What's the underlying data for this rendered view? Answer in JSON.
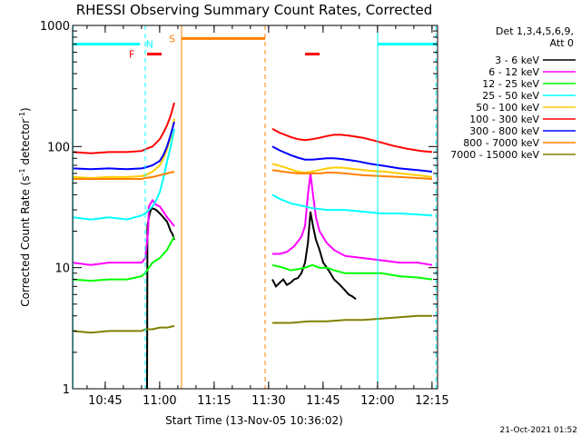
{
  "chart_data": {
    "type": "line",
    "title": "RHESSI Observing Summary Count Rates, Corrected",
    "xlabel": "Start Time (13-Nov-05 10:36:02)",
    "ylabel_main": "Corrected Count Rate (s",
    "ylabel_sup1": "-1",
    "ylabel_mid": " detector",
    "ylabel_sup2": "-1",
    "ylabel_end": ")",
    "x_unit": "minutes after 10:36:02",
    "xlim": [
      0,
      100.5
    ],
    "ylim": [
      1,
      1000
    ],
    "yscale": "log",
    "x_ticks": [
      {
        "v": 8.97,
        "label": "10:45"
      },
      {
        "v": 23.97,
        "label": "11:00"
      },
      {
        "v": 38.97,
        "label": "11:15"
      },
      {
        "v": 53.97,
        "label": "11:30"
      },
      {
        "v": 68.97,
        "label": "11:45"
      },
      {
        "v": 83.97,
        "label": "12:00"
      },
      {
        "v": 98.97,
        "label": "12:15"
      }
    ],
    "y_ticks": [
      {
        "v": 1,
        "label": "1"
      },
      {
        "v": 10,
        "label": "10"
      },
      {
        "v": 100,
        "label": "100"
      },
      {
        "v": 1000,
        "label": "1000"
      }
    ],
    "legend_header": [
      "Det 1,3,4,5,6,9,",
      "Att 0"
    ],
    "legend_position": "right",
    "series": [
      {
        "name": "3 - 6 keV",
        "color": "#000000",
        "points": [
          [
            20.5,
            1
          ],
          [
            20.6,
            22
          ],
          [
            21,
            26
          ],
          [
            21.5,
            30
          ],
          [
            22,
            31
          ],
          [
            23,
            30
          ],
          [
            24,
            28
          ],
          [
            25,
            26
          ],
          [
            26,
            24
          ],
          [
            26.5,
            22
          ],
          [
            27,
            20
          ],
          [
            27.5,
            19
          ],
          [
            28,
            17
          ],
          [
            55,
            8
          ],
          [
            56,
            7
          ],
          [
            57,
            7.5
          ],
          [
            58,
            8
          ],
          [
            59,
            7.2
          ],
          [
            60,
            7.5
          ],
          [
            61,
            8
          ],
          [
            62,
            8.2
          ],
          [
            63,
            9
          ],
          [
            64,
            11
          ],
          [
            64.8,
            16
          ],
          [
            65.5,
            29
          ],
          [
            66.2,
            22
          ],
          [
            67,
            17
          ],
          [
            68,
            14
          ],
          [
            69,
            11
          ],
          [
            70,
            10
          ],
          [
            71,
            9
          ],
          [
            72,
            8
          ],
          [
            73,
            7.5
          ],
          [
            74,
            7
          ],
          [
            75,
            6.5
          ],
          [
            76,
            6
          ],
          [
            77,
            5.8
          ],
          [
            78,
            5.5
          ]
        ]
      },
      {
        "name": "6 - 12 keV",
        "color": "#ff00ff",
        "points": [
          [
            0,
            11
          ],
          [
            5,
            10.5
          ],
          [
            10,
            11
          ],
          [
            15,
            11
          ],
          [
            19,
            11
          ],
          [
            20,
            12
          ],
          [
            20.8,
            20
          ],
          [
            21,
            32
          ],
          [
            22,
            36
          ],
          [
            23,
            33
          ],
          [
            24,
            32
          ],
          [
            25,
            29
          ],
          [
            26,
            26
          ],
          [
            27,
            24
          ],
          [
            28,
            22
          ],
          [
            55,
            13
          ],
          [
            57,
            13
          ],
          [
            59,
            13.5
          ],
          [
            61,
            15
          ],
          [
            63,
            18
          ],
          [
            64,
            22
          ],
          [
            64.8,
            40
          ],
          [
            65.5,
            60
          ],
          [
            66.2,
            40
          ],
          [
            67,
            26
          ],
          [
            68,
            20
          ],
          [
            70,
            16
          ],
          [
            72,
            14
          ],
          [
            75,
            12.5
          ],
          [
            80,
            12
          ],
          [
            85,
            11.5
          ],
          [
            90,
            11
          ],
          [
            95,
            11
          ],
          [
            99,
            10.5
          ]
        ]
      },
      {
        "name": "12 - 25 keV",
        "color": "#00ff00",
        "points": [
          [
            0,
            8
          ],
          [
            5,
            7.8
          ],
          [
            10,
            8
          ],
          [
            15,
            8
          ],
          [
            19,
            8.5
          ],
          [
            20,
            9
          ],
          [
            21,
            10
          ],
          [
            22,
            11
          ],
          [
            23,
            11.5
          ],
          [
            24,
            12
          ],
          [
            25,
            13
          ],
          [
            26,
            14
          ],
          [
            27,
            16
          ],
          [
            28,
            18
          ],
          [
            55,
            10.5
          ],
          [
            58,
            10
          ],
          [
            60,
            9.5
          ],
          [
            62,
            9.7
          ],
          [
            64,
            10
          ],
          [
            66,
            10.5
          ],
          [
            68,
            10
          ],
          [
            70,
            10
          ],
          [
            72,
            9.5
          ],
          [
            75,
            9
          ],
          [
            80,
            9
          ],
          [
            85,
            9
          ],
          [
            90,
            8.5
          ],
          [
            95,
            8.3
          ],
          [
            99,
            8
          ]
        ]
      },
      {
        "name": "25 - 50 keV",
        "color": "#00ffff",
        "points": [
          [
            0,
            26
          ],
          [
            5,
            25
          ],
          [
            10,
            26
          ],
          [
            15,
            25
          ],
          [
            19,
            27
          ],
          [
            20,
            28
          ],
          [
            21,
            30
          ],
          [
            22,
            32
          ],
          [
            23,
            36
          ],
          [
            24,
            42
          ],
          [
            25,
            55
          ],
          [
            26,
            75
          ],
          [
            27,
            100
          ],
          [
            28,
            140
          ],
          [
            55,
            40
          ],
          [
            57,
            37
          ],
          [
            60,
            34
          ],
          [
            62,
            33
          ],
          [
            64,
            32
          ],
          [
            66,
            31
          ],
          [
            70,
            30
          ],
          [
            75,
            30
          ],
          [
            80,
            29
          ],
          [
            85,
            28
          ],
          [
            90,
            28
          ],
          [
            95,
            27.5
          ],
          [
            99,
            27
          ]
        ]
      },
      {
        "name": "50 - 100 keV",
        "color": "#ffcc00",
        "points": [
          [
            0,
            56
          ],
          [
            5,
            55
          ],
          [
            10,
            56
          ],
          [
            15,
            56
          ],
          [
            19,
            57
          ],
          [
            20,
            58
          ],
          [
            22,
            62
          ],
          [
            24,
            70
          ],
          [
            25,
            80
          ],
          [
            26,
            95
          ],
          [
            27,
            120
          ],
          [
            28,
            170
          ],
          [
            55,
            72
          ],
          [
            58,
            68
          ],
          [
            60,
            65
          ],
          [
            62,
            62
          ],
          [
            64,
            61
          ],
          [
            66,
            62
          ],
          [
            68,
            64
          ],
          [
            70,
            66
          ],
          [
            72,
            67
          ],
          [
            74,
            67
          ],
          [
            78,
            65
          ],
          [
            82,
            63
          ],
          [
            86,
            62
          ],
          [
            90,
            60
          ],
          [
            95,
            58
          ],
          [
            99,
            56
          ]
        ]
      },
      {
        "name": "100 - 300 keV",
        "color": "#ff0000",
        "points": [
          [
            0,
            90
          ],
          [
            5,
            88
          ],
          [
            10,
            90
          ],
          [
            15,
            90
          ],
          [
            19,
            92
          ],
          [
            20,
            95
          ],
          [
            22,
            100
          ],
          [
            24,
            115
          ],
          [
            25,
            130
          ],
          [
            26,
            150
          ],
          [
            27,
            180
          ],
          [
            28,
            230
          ],
          [
            55,
            140
          ],
          [
            57,
            130
          ],
          [
            60,
            120
          ],
          [
            62,
            115
          ],
          [
            64,
            113
          ],
          [
            66,
            115
          ],
          [
            68,
            118
          ],
          [
            70,
            122
          ],
          [
            72,
            125
          ],
          [
            74,
            125
          ],
          [
            76,
            123
          ],
          [
            80,
            118
          ],
          [
            84,
            110
          ],
          [
            88,
            102
          ],
          [
            92,
            96
          ],
          [
            96,
            92
          ],
          [
            99,
            90
          ]
        ]
      },
      {
        "name": "300 - 800 keV",
        "color": "#0000ff",
        "points": [
          [
            0,
            66
          ],
          [
            5,
            65
          ],
          [
            10,
            66
          ],
          [
            15,
            65
          ],
          [
            19,
            66
          ],
          [
            20,
            67
          ],
          [
            22,
            70
          ],
          [
            24,
            76
          ],
          [
            25,
            85
          ],
          [
            26,
            100
          ],
          [
            27,
            125
          ],
          [
            28,
            160
          ],
          [
            55,
            100
          ],
          [
            57,
            93
          ],
          [
            60,
            85
          ],
          [
            62,
            81
          ],
          [
            64,
            78
          ],
          [
            66,
            78
          ],
          [
            68,
            79
          ],
          [
            70,
            80
          ],
          [
            72,
            80
          ],
          [
            74,
            79
          ],
          [
            78,
            76
          ],
          [
            82,
            72
          ],
          [
            86,
            69
          ],
          [
            90,
            66
          ],
          [
            95,
            64
          ],
          [
            99,
            62
          ]
        ]
      },
      {
        "name": "800 - 7000 keV",
        "color": "#ff8000",
        "points": [
          [
            0,
            54
          ],
          [
            5,
            54
          ],
          [
            10,
            54
          ],
          [
            15,
            54
          ],
          [
            19,
            54
          ],
          [
            20,
            55
          ],
          [
            22,
            56
          ],
          [
            24,
            58
          ],
          [
            26,
            60
          ],
          [
            28,
            62
          ],
          [
            55,
            64
          ],
          [
            58,
            62
          ],
          [
            60,
            61
          ],
          [
            62,
            60
          ],
          [
            65,
            60
          ],
          [
            68,
            60
          ],
          [
            70,
            61
          ],
          [
            72,
            61
          ],
          [
            75,
            60
          ],
          [
            80,
            58
          ],
          [
            85,
            57
          ],
          [
            90,
            56
          ],
          [
            95,
            55
          ],
          [
            99,
            54
          ]
        ]
      },
      {
        "name": "7000 - 15000 keV",
        "color": "#808000",
        "points": [
          [
            0,
            3
          ],
          [
            5,
            2.9
          ],
          [
            10,
            3
          ],
          [
            15,
            3
          ],
          [
            19,
            3
          ],
          [
            20,
            3.1
          ],
          [
            22,
            3.1
          ],
          [
            24,
            3.2
          ],
          [
            26,
            3.2
          ],
          [
            28,
            3.3
          ],
          [
            55,
            3.5
          ],
          [
            60,
            3.5
          ],
          [
            65,
            3.6
          ],
          [
            70,
            3.6
          ],
          [
            75,
            3.7
          ],
          [
            80,
            3.7
          ],
          [
            85,
            3.8
          ],
          [
            90,
            3.9
          ],
          [
            95,
            4
          ],
          [
            99,
            4
          ]
        ]
      }
    ],
    "annotations": {
      "eclipse_lines": [
        {
          "x": 0.1,
          "color": "#00ffff",
          "style": "solid"
        },
        {
          "x": 20.0,
          "color": "#00ffff",
          "style": "dashed"
        },
        {
          "x": 84.0,
          "color": "#00ffff",
          "style": "solid"
        },
        {
          "x": 100.1,
          "color": "#00ffff",
          "style": "dashed"
        }
      ],
      "saa_lines": [
        {
          "x": 30.0,
          "color": "#ff8000",
          "style": "solid"
        },
        {
          "x": 53.0,
          "color": "#ff8000",
          "style": "dashed"
        }
      ],
      "eclipse_bars": [
        {
          "x0": 0.1,
          "x1": 18.5,
          "y": 700,
          "color": "#00ffff"
        },
        {
          "x0": 84.0,
          "x1": 100.1,
          "y": 700,
          "color": "#00ffff"
        }
      ],
      "saa_bar": {
        "x0": 30.0,
        "x1": 53.0,
        "y": 780,
        "color": "#ff8000"
      },
      "flare_bars": [
        {
          "x0": 20.5,
          "x1": 24.5,
          "y": 580,
          "color": "#ff0000"
        },
        {
          "x0": 64.0,
          "x1": 68.0,
          "y": 580,
          "color": "#ff0000"
        }
      ],
      "markers": [
        {
          "text": "F",
          "x": 16.3,
          "y": 580,
          "color": "#ff0000"
        },
        {
          "text": "N",
          "x": 21.2,
          "y": 700,
          "color": "#00ffff"
        },
        {
          "text": "S",
          "x": 27.4,
          "y": 780,
          "color": "#ff8000"
        }
      ]
    },
    "footer_date": "21-Oct-2021 01:52"
  }
}
